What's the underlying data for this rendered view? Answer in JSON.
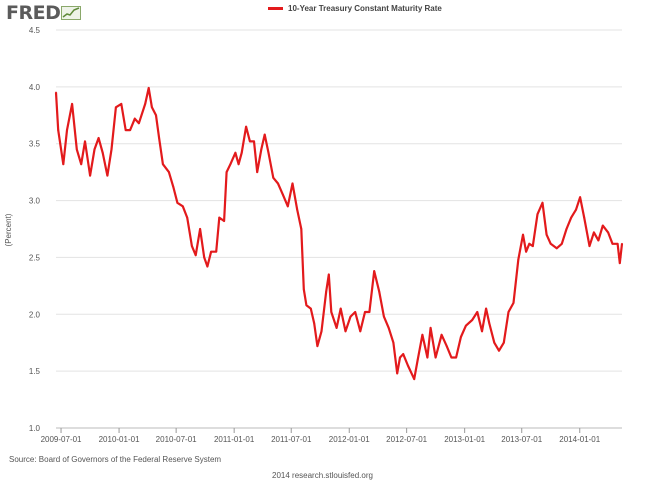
{
  "logo": {
    "text": "FRED"
  },
  "chart_data": {
    "type": "line",
    "title": "",
    "xlabel": "",
    "ylabel": "(Percent)",
    "ylim": [
      1.0,
      4.5
    ],
    "yticks": [
      1.0,
      1.5,
      2.0,
      2.5,
      3.0,
      3.5,
      4.0,
      4.5
    ],
    "ytick_labels": [
      "1.0",
      "1.5",
      "2.0",
      "2.5",
      "3.0",
      "3.5",
      "4.0",
      "4.5"
    ],
    "xlim": [
      "2009-06-15",
      "2014-05-15"
    ],
    "xticks": [
      "2009-07-01",
      "2010-01-01",
      "2010-07-01",
      "2011-01-01",
      "2011-07-01",
      "2012-01-01",
      "2012-07-01",
      "2013-01-01",
      "2013-07-01",
      "2014-01-01"
    ],
    "grid": "horizontal",
    "legend": "top-center",
    "series": [
      {
        "name": "10-Year Treasury Constant Maturity Rate",
        "color": "#e31a1c",
        "points": [
          [
            "2009-06-15",
            3.95
          ],
          [
            "2009-06-22",
            3.62
          ],
          [
            "2009-07-08",
            3.32
          ],
          [
            "2009-07-20",
            3.62
          ],
          [
            "2009-08-05",
            3.85
          ],
          [
            "2009-08-20",
            3.45
          ],
          [
            "2009-09-03",
            3.32
          ],
          [
            "2009-09-15",
            3.52
          ],
          [
            "2009-10-01",
            3.22
          ],
          [
            "2009-10-15",
            3.45
          ],
          [
            "2009-10-28",
            3.55
          ],
          [
            "2009-11-10",
            3.42
          ],
          [
            "2009-11-25",
            3.22
          ],
          [
            "2009-12-08",
            3.45
          ],
          [
            "2009-12-22",
            3.82
          ],
          [
            "2010-01-08",
            3.85
          ],
          [
            "2010-01-22",
            3.62
          ],
          [
            "2010-02-05",
            3.62
          ],
          [
            "2010-02-20",
            3.72
          ],
          [
            "2010-03-05",
            3.68
          ],
          [
            "2010-03-25",
            3.85
          ],
          [
            "2010-04-05",
            3.99
          ],
          [
            "2010-04-15",
            3.82
          ],
          [
            "2010-04-28",
            3.75
          ],
          [
            "2010-05-08",
            3.55
          ],
          [
            "2010-05-20",
            3.32
          ],
          [
            "2010-06-08",
            3.25
          ],
          [
            "2010-06-22",
            3.12
          ],
          [
            "2010-07-05",
            2.98
          ],
          [
            "2010-07-22",
            2.95
          ],
          [
            "2010-08-05",
            2.85
          ],
          [
            "2010-08-20",
            2.6
          ],
          [
            "2010-09-01",
            2.52
          ],
          [
            "2010-09-15",
            2.75
          ],
          [
            "2010-09-28",
            2.5
          ],
          [
            "2010-10-08",
            2.42
          ],
          [
            "2010-10-20",
            2.55
          ],
          [
            "2010-11-05",
            2.55
          ],
          [
            "2010-11-15",
            2.85
          ],
          [
            "2010-11-30",
            2.82
          ],
          [
            "2010-12-08",
            3.25
          ],
          [
            "2010-12-20",
            3.32
          ],
          [
            "2011-01-05",
            3.42
          ],
          [
            "2011-01-15",
            3.32
          ],
          [
            "2011-01-25",
            3.42
          ],
          [
            "2011-02-08",
            3.65
          ],
          [
            "2011-02-20",
            3.52
          ],
          [
            "2011-03-05",
            3.52
          ],
          [
            "2011-03-15",
            3.25
          ],
          [
            "2011-03-28",
            3.45
          ],
          [
            "2011-04-08",
            3.58
          ],
          [
            "2011-04-20",
            3.42
          ],
          [
            "2011-05-05",
            3.2
          ],
          [
            "2011-05-20",
            3.15
          ],
          [
            "2011-06-05",
            3.05
          ],
          [
            "2011-06-20",
            2.95
          ],
          [
            "2011-07-05",
            3.15
          ],
          [
            "2011-07-20",
            2.92
          ],
          [
            "2011-08-02",
            2.75
          ],
          [
            "2011-08-10",
            2.22
          ],
          [
            "2011-08-18",
            2.08
          ],
          [
            "2011-09-01",
            2.05
          ],
          [
            "2011-09-12",
            1.92
          ],
          [
            "2011-09-22",
            1.72
          ],
          [
            "2011-10-05",
            1.85
          ],
          [
            "2011-10-20",
            2.2
          ],
          [
            "2011-10-28",
            2.35
          ],
          [
            "2011-11-05",
            2.02
          ],
          [
            "2011-11-22",
            1.88
          ],
          [
            "2011-12-05",
            2.05
          ],
          [
            "2011-12-20",
            1.85
          ],
          [
            "2012-01-05",
            1.98
          ],
          [
            "2012-01-20",
            2.02
          ],
          [
            "2012-02-05",
            1.85
          ],
          [
            "2012-02-20",
            2.02
          ],
          [
            "2012-03-05",
            2.02
          ],
          [
            "2012-03-20",
            2.38
          ],
          [
            "2012-04-05",
            2.2
          ],
          [
            "2012-04-20",
            1.98
          ],
          [
            "2012-05-05",
            1.88
          ],
          [
            "2012-05-20",
            1.75
          ],
          [
            "2012-06-01",
            1.48
          ],
          [
            "2012-06-10",
            1.62
          ],
          [
            "2012-06-20",
            1.65
          ],
          [
            "2012-07-05",
            1.55
          ],
          [
            "2012-07-25",
            1.43
          ],
          [
            "2012-08-05",
            1.6
          ],
          [
            "2012-08-20",
            1.82
          ],
          [
            "2012-09-05",
            1.62
          ],
          [
            "2012-09-15",
            1.88
          ],
          [
            "2012-10-01",
            1.62
          ],
          [
            "2012-10-20",
            1.82
          ],
          [
            "2012-11-05",
            1.72
          ],
          [
            "2012-11-20",
            1.62
          ],
          [
            "2012-12-05",
            1.62
          ],
          [
            "2012-12-20",
            1.8
          ],
          [
            "2013-01-05",
            1.9
          ],
          [
            "2013-01-25",
            1.95
          ],
          [
            "2013-02-10",
            2.02
          ],
          [
            "2013-02-25",
            1.85
          ],
          [
            "2013-03-10",
            2.05
          ],
          [
            "2013-03-20",
            1.92
          ],
          [
            "2013-04-05",
            1.75
          ],
          [
            "2013-04-20",
            1.68
          ],
          [
            "2013-05-05",
            1.75
          ],
          [
            "2013-05-20",
            2.02
          ],
          [
            "2013-06-05",
            2.1
          ],
          [
            "2013-06-20",
            2.48
          ],
          [
            "2013-07-05",
            2.7
          ],
          [
            "2013-07-15",
            2.55
          ],
          [
            "2013-07-25",
            2.62
          ],
          [
            "2013-08-05",
            2.6
          ],
          [
            "2013-08-20",
            2.88
          ],
          [
            "2013-09-05",
            2.98
          ],
          [
            "2013-09-18",
            2.7
          ],
          [
            "2013-10-01",
            2.62
          ],
          [
            "2013-10-20",
            2.58
          ],
          [
            "2013-11-05",
            2.62
          ],
          [
            "2013-11-20",
            2.75
          ],
          [
            "2013-12-05",
            2.85
          ],
          [
            "2013-12-20",
            2.92
          ],
          [
            "2014-01-02",
            3.03
          ],
          [
            "2014-01-15",
            2.85
          ],
          [
            "2014-02-01",
            2.6
          ],
          [
            "2014-02-15",
            2.72
          ],
          [
            "2014-03-01",
            2.65
          ],
          [
            "2014-03-15",
            2.78
          ],
          [
            "2014-04-01",
            2.72
          ],
          [
            "2014-04-15",
            2.62
          ],
          [
            "2014-05-01",
            2.62
          ],
          [
            "2014-05-08",
            2.45
          ],
          [
            "2014-05-15",
            2.62
          ]
        ]
      }
    ]
  },
  "footer": {
    "source": "Source: Board of Governors of the Federal Reserve System",
    "credit": "2014 research.stlouisfed.org"
  }
}
